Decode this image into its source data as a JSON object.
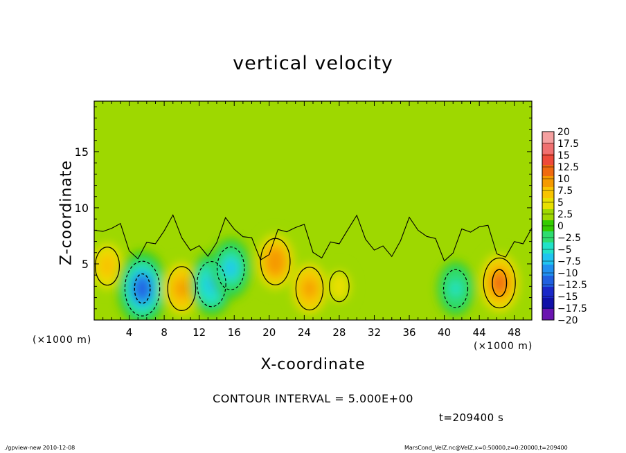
{
  "page": {
    "footer_left": "./gpview-new  2010-12-08",
    "footer_right": "MarsCond_VelZ.nc@VelZ,x=0:50000,z=0:20000,t=209400",
    "contour_interval": "CONTOUR INTERVAL = 5.000E+00",
    "time_label": "t=209400 s"
  },
  "chart_data": {
    "type": "heatmap",
    "title": "vertical velocity",
    "xlabel": "X-coordinate",
    "ylabel": "Z-coordinate",
    "x_unit_label": "(×1000 m)",
    "xlim": [
      0,
      50
    ],
    "ylim": [
      0,
      19.5
    ],
    "x_ticks": [
      4,
      8,
      12,
      16,
      20,
      24,
      28,
      32,
      36,
      40,
      44,
      48
    ],
    "y_ticks": [
      5,
      10,
      15
    ],
    "colorbar": {
      "levels": [
        20,
        17.5,
        15,
        12.5,
        10,
        7.5,
        5,
        2.5,
        0,
        -2.5,
        -5,
        -7.5,
        -10,
        -12.5,
        -15,
        -17.5,
        -20
      ],
      "labels": [
        "20",
        "17.5",
        "15",
        "12.5",
        "10",
        "7.5",
        "5",
        "2.5",
        "0",
        "−2.5",
        "−5",
        "−7.5",
        "−10",
        "−12.5",
        "−15",
        "−17.5",
        "−20"
      ],
      "colors": [
        "#f5a0a0",
        "#f07070",
        "#ee4a3a",
        "#f06a10",
        "#f59a00",
        "#f8c400",
        "#e8e000",
        "#9ed800",
        "#33cc00",
        "#2edc70",
        "#22e2c8",
        "#20c4f0",
        "#2090f0",
        "#2060e0",
        "#1a28c8",
        "#1010a8",
        "#6a14b0"
      ]
    },
    "background_value": 0.5,
    "features": [
      {
        "x": 1.5,
        "z": 4.8,
        "value": 6
      },
      {
        "x": 5.5,
        "z": 2.8,
        "value": -13
      },
      {
        "x": 10,
        "z": 2.8,
        "value": 8.5
      },
      {
        "x": 13.4,
        "z": 3.2,
        "value": -9
      },
      {
        "x": 15.6,
        "z": 4.6,
        "value": -8
      },
      {
        "x": 20.7,
        "z": 5.2,
        "value": 9.5
      },
      {
        "x": 24.6,
        "z": 2.8,
        "value": 8
      },
      {
        "x": 28,
        "z": 3,
        "value": 3
      },
      {
        "x": 41.3,
        "z": 2.8,
        "value": -6
      },
      {
        "x": 46.3,
        "z": 3.3,
        "value": 11
      }
    ]
  }
}
